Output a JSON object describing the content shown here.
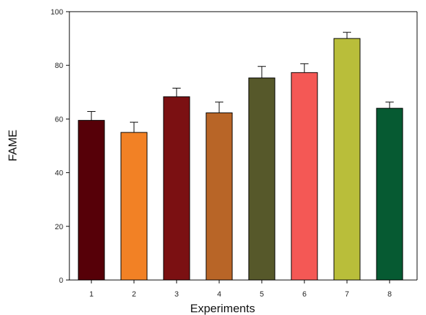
{
  "chart_data": {
    "type": "bar",
    "title": "",
    "xlabel": "Experiments",
    "ylabel": "FAME",
    "ylim": [
      0,
      100
    ],
    "yticks": [
      0,
      20,
      40,
      60,
      80,
      100
    ],
    "categories": [
      "1",
      "2",
      "3",
      "4",
      "5",
      "6",
      "7",
      "8"
    ],
    "values": [
      59.5,
      55.0,
      68.3,
      62.3,
      75.3,
      77.3,
      90.0,
      64.0
    ],
    "errors": [
      3.3,
      3.8,
      3.2,
      4.0,
      4.3,
      3.3,
      2.3,
      2.3
    ],
    "colors": [
      "#560008",
      "#F28125",
      "#7B1012",
      "#B86527",
      "#56582A",
      "#F45855",
      "#B9BE3A",
      "#065A32"
    ],
    "grid": false,
    "legend": "none"
  }
}
